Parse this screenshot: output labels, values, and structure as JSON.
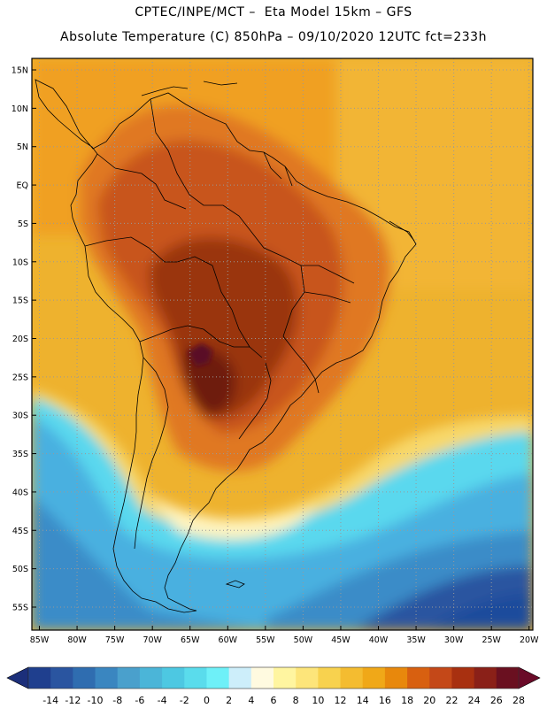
{
  "header": {
    "line1": "CPTEC/INPE/MCT –  Eta Model 15km – GFS",
    "line2": "Absolute Temperature (C) 850hPa – 09/10/2020 12UTC fct=233h"
  },
  "map": {
    "lat_labels": [
      "15N",
      "10N",
      "5N",
      "EQ",
      "5S",
      "10S",
      "15S",
      "20S",
      "25S",
      "30S",
      "35S",
      "40S",
      "45S",
      "50S",
      "55S"
    ],
    "lon_labels": [
      "85W",
      "80W",
      "75W",
      "70W",
      "65W",
      "60W",
      "55W",
      "50W",
      "45W",
      "40W",
      "35W",
      "30W",
      "25W",
      "20W"
    ],
    "colors": {
      "hot_core": "#6e1e0f",
      "very_hot": "#9a3410",
      "hot": "#c8541a",
      "warm_orange": "#e07820",
      "orange": "#f0a020",
      "yellow_orange": "#f4bc3a",
      "yellow": "#f8d86a",
      "pale_yellow": "#fff4c0",
      "cyan": "#5ad8ee",
      "light_blue": "#4ab0e0",
      "mid_blue": "#3a8cc8",
      "dark_blue": "#1e4c9c",
      "land_border": "#000000",
      "grid": "#999999"
    }
  },
  "colorbar": {
    "labels": [
      "-14",
      "-12",
      "-10",
      "-8",
      "-6",
      "-4",
      "-2",
      "0",
      "2",
      "4",
      "6",
      "8",
      "10",
      "12",
      "14",
      "16",
      "18",
      "20",
      "22",
      "24",
      "26",
      "28"
    ],
    "colors": [
      "#1f3f8e",
      "#2a55a0",
      "#2f6db0",
      "#3a86c0",
      "#4aa0cc",
      "#4bb5d8",
      "#4dc8e2",
      "#5adcec",
      "#6ef0f8",
      "#cdeefa",
      "#fffae0",
      "#fff5a0",
      "#fde57a",
      "#f8d24e",
      "#f4bc30",
      "#f0a818",
      "#e8880c",
      "#d86010",
      "#c44818",
      "#a83010",
      "#8a2018",
      "#6a1020"
    ],
    "left_arrow_color": "#1c2f7a",
    "right_arrow_color": "#6a0a28"
  }
}
